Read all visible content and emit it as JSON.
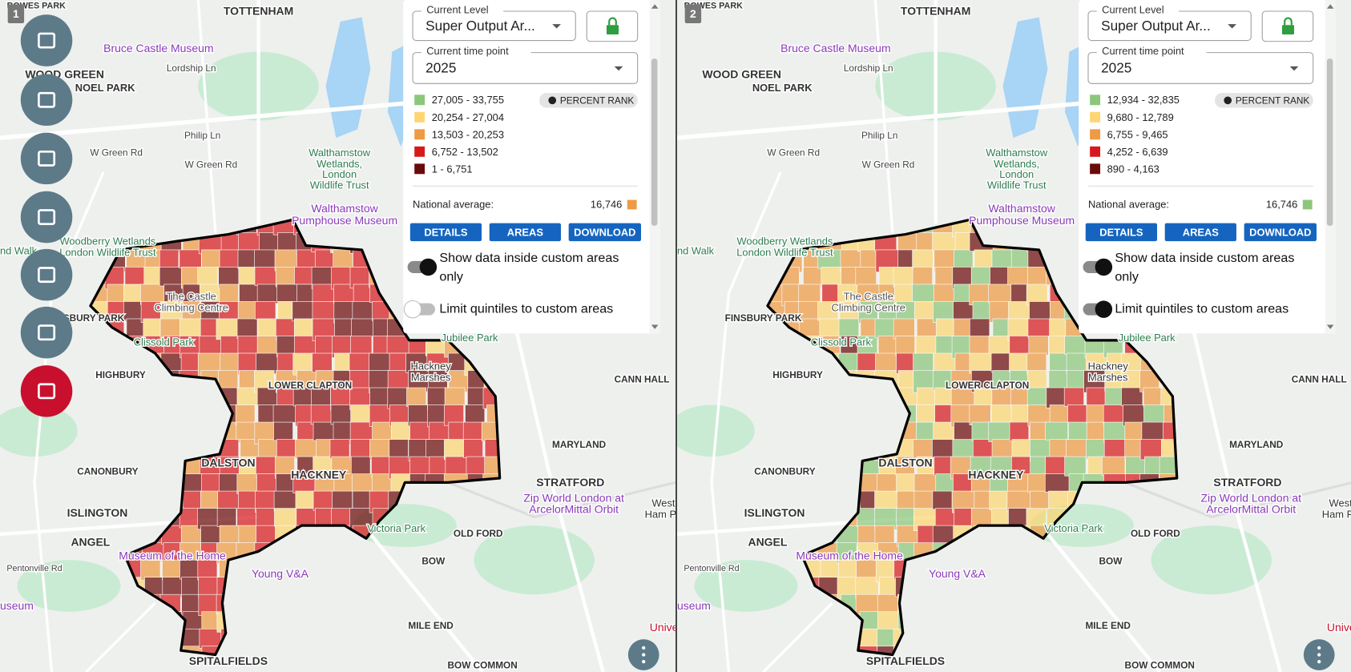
{
  "map_labels": [
    "BOWES PARK",
    "TOTTENHAM",
    "Bruce Castle Museum",
    "Lordship Ln",
    "WOOD GREEN",
    "NOEL PARK",
    "Philip Ln",
    "W Green Rd",
    "W Green Rd",
    "Walthamstow",
    "Wetlands,",
    "London",
    "Wildlife Trust",
    "Walthamstow",
    "Pumphouse Museum",
    "Woodberry Wetlands",
    "London Wildlife Trust",
    "nd Walk",
    "The Castle",
    "Climbing Centre",
    "FINSBURY PARK",
    "Clissold Park",
    "Jubilee Park",
    "HIGHBURY",
    "Hackney",
    "Marshes",
    "LOWER CLAPTON",
    "CANN HALL",
    "MARYLAND",
    "DALSTON",
    "HACKNEY",
    "CANONBURY",
    "STRATFORD",
    "ISLINGTON",
    "Zip World London at",
    "ArcelorMittal Orbit",
    "West",
    "Ham Pa",
    "Victoria Park",
    "OLD FORD",
    "ANGEL",
    "Museum of the Home",
    "Young V&A",
    "BOW",
    "Pentonville Rd",
    "useum",
    "MILE END",
    "Unive",
    "SPITALFIELDS",
    "BOW COMMON"
  ],
  "panels": [
    {
      "number": "1",
      "level_label": "Current Level",
      "level_value": "Super Output Ar...",
      "time_label": "Current time point",
      "time_value": "2025",
      "legend": [
        {
          "label": "27,005 - 33,755",
          "color": "#8cc67a"
        },
        {
          "label": "20,254 - 27,004",
          "color": "#fdd673"
        },
        {
          "label": "13,503 - 20,253",
          "color": "#ef9a44"
        },
        {
          "label": "6,752 - 13,502",
          "color": "#d7191c"
        },
        {
          "label": "1 - 6,751",
          "color": "#6b0a0a"
        }
      ],
      "percent_rank": "PERCENT RANK",
      "national_average_label": "National average:",
      "national_average_value": "16,746",
      "national_average_color": "#ef9a44",
      "buttons": [
        "DETAILS",
        "AREAS",
        "DOWNLOAD"
      ],
      "toggles": [
        {
          "label_lines": [
            "Show data inside custom areas",
            "only"
          ],
          "on": true
        },
        {
          "label_lines": [
            "Limit quintiles to custom areas"
          ],
          "on": false
        }
      ]
    },
    {
      "number": "2",
      "level_label": "Current Level",
      "level_value": "Super Output Ar...",
      "time_label": "Current time point",
      "time_value": "2025",
      "legend": [
        {
          "label": "12,934 - 32,835",
          "color": "#8cc67a"
        },
        {
          "label": "9,680 - 12,789",
          "color": "#fdd673"
        },
        {
          "label": "6,755 - 9,465",
          "color": "#ef9a44"
        },
        {
          "label": "4,252 - 6,639",
          "color": "#d7191c"
        },
        {
          "label": "890 - 4,163",
          "color": "#6b0a0a"
        }
      ],
      "percent_rank": "PERCENT RANK",
      "national_average_label": "National average:",
      "national_average_value": "16,746",
      "national_average_color": "#8cc67a",
      "buttons": [
        "DETAILS",
        "AREAS",
        "DOWNLOAD"
      ],
      "toggles": [
        {
          "label_lines": [
            "Show data inside custom areas",
            "only"
          ],
          "on": true
        },
        {
          "label_lines": [
            "Limit quintiles to custom areas"
          ],
          "on": true
        }
      ]
    }
  ]
}
